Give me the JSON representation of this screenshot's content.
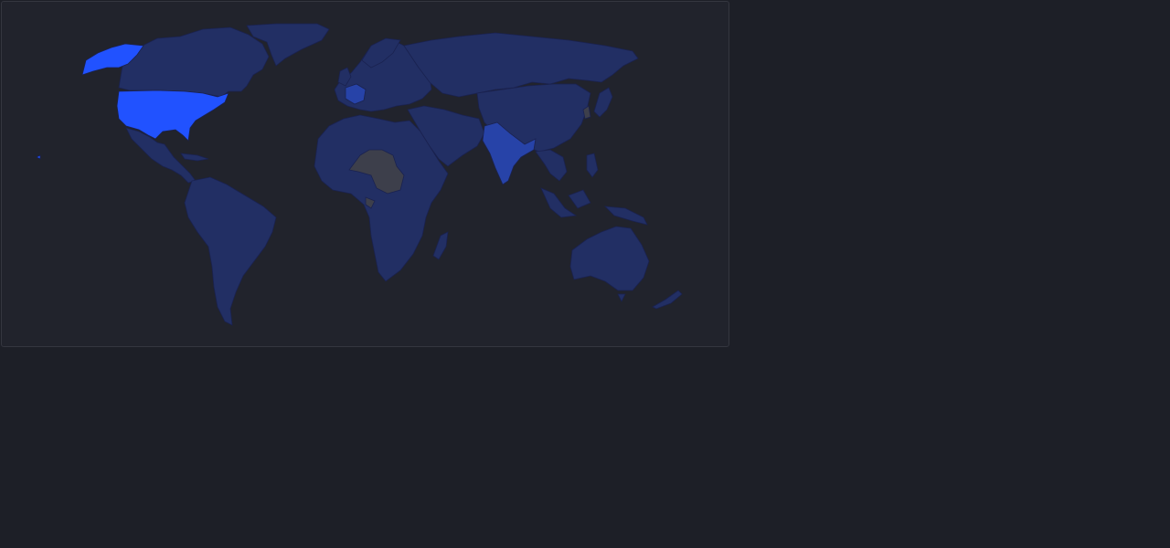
{
  "map": {
    "type": "choropleth-world",
    "colors": {
      "background": "#1d1f27",
      "panel": "#21232c",
      "panel_border": "#34363f",
      "highest": "#2152ff",
      "high": "#2743a8",
      "default": "#222f64",
      "no_data": "#3d3f4b"
    },
    "regions": [
      {
        "name": "north-america-icon",
        "level": "default"
      },
      {
        "name": "greenland-icon",
        "level": "default"
      },
      {
        "name": "alaska-icon",
        "level": "highest"
      },
      {
        "name": "united-states-icon",
        "level": "highest"
      },
      {
        "name": "central-america-icon",
        "level": "default"
      },
      {
        "name": "south-america-icon",
        "level": "default"
      },
      {
        "name": "europe-icon",
        "level": "default"
      },
      {
        "name": "france-icon",
        "level": "high"
      },
      {
        "name": "africa-icon",
        "level": "default"
      },
      {
        "name": "central-africa-icon",
        "level": "no_data"
      },
      {
        "name": "madagascar-icon",
        "level": "default"
      },
      {
        "name": "middle-east-icon",
        "level": "default"
      },
      {
        "name": "asia-icon",
        "level": "default"
      },
      {
        "name": "india-icon",
        "level": "high"
      },
      {
        "name": "japan-icon",
        "level": "default"
      },
      {
        "name": "southeast-asia-icon",
        "level": "default"
      },
      {
        "name": "australia-icon",
        "level": "default"
      },
      {
        "name": "new-zealand-icon",
        "level": "default"
      }
    ]
  }
}
